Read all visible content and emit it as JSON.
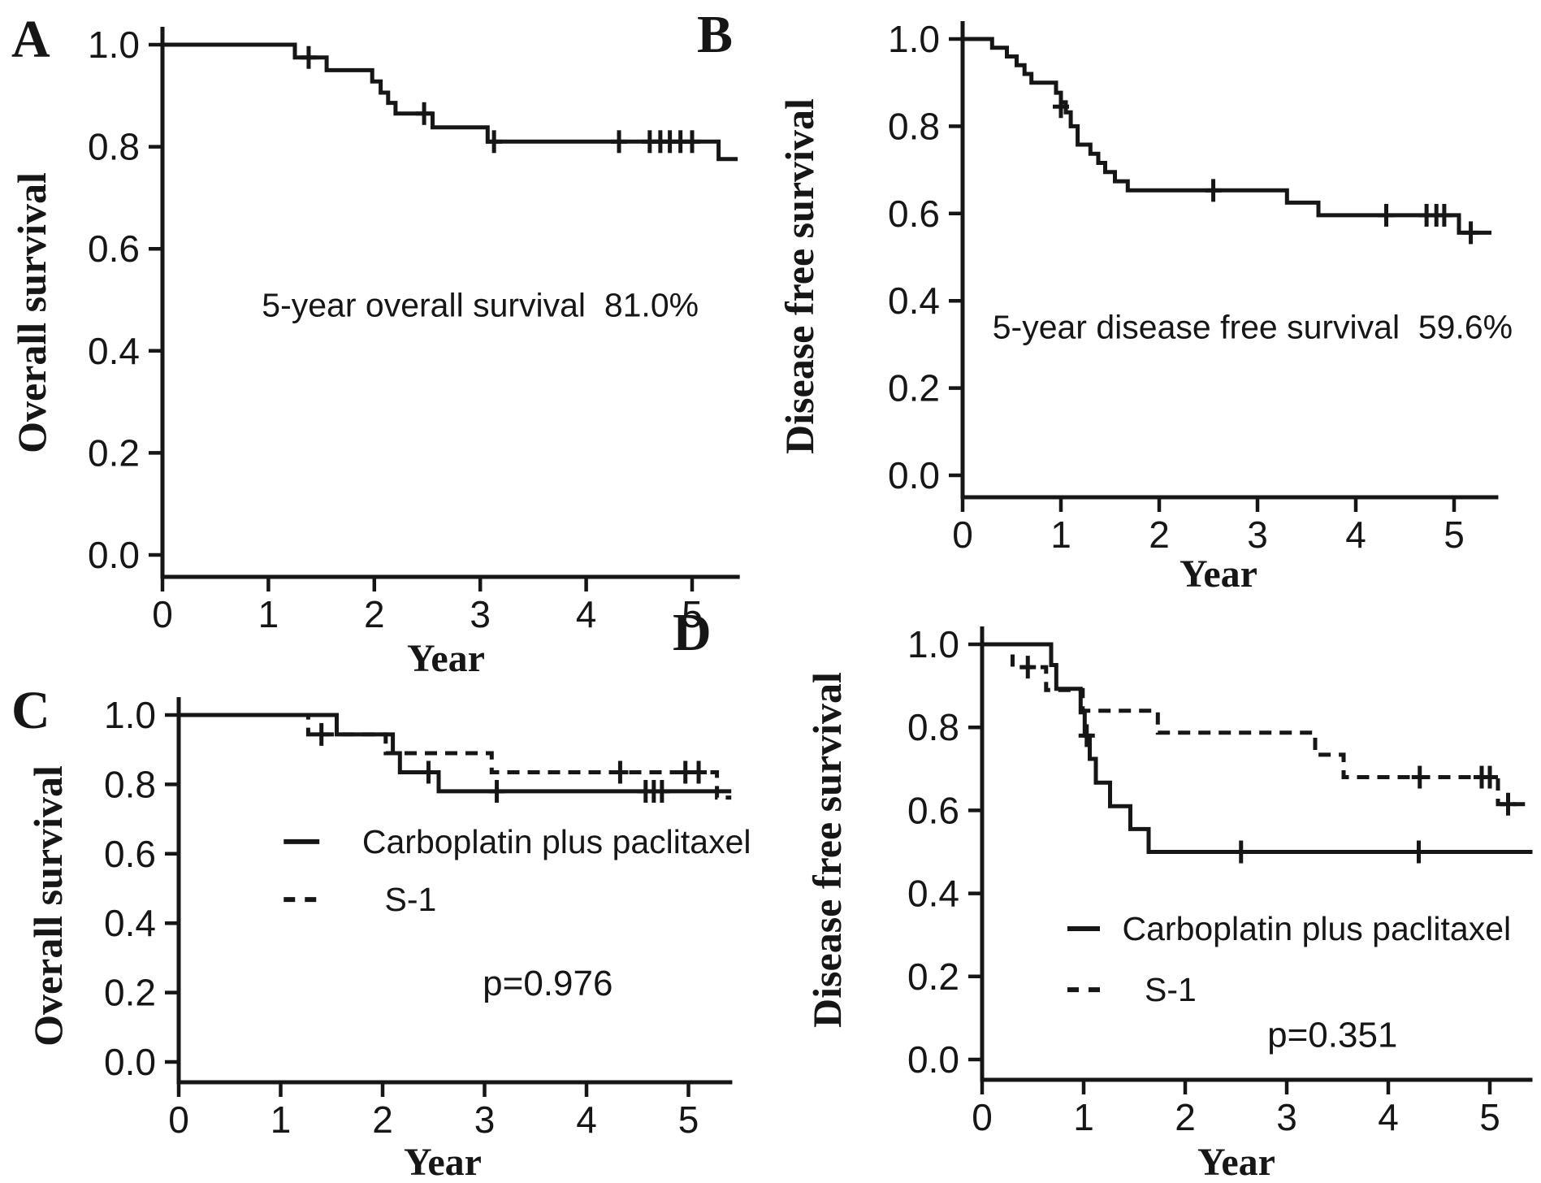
{
  "figure": {
    "background": "#ffffff",
    "ink_color": "#161616"
  },
  "chart_data": [
    {
      "id": "A",
      "type": "km_step_line",
      "panel_label": "A",
      "x_label": "Year",
      "y_label": "Overall survival",
      "x_ticks": [
        "0",
        "1",
        "2",
        "3",
        "4",
        "5"
      ],
      "y_ticks": [
        "0.0",
        "0.2",
        "0.4",
        "0.6",
        "0.8",
        "1.0"
      ],
      "x_range": [
        0,
        5.45
      ],
      "y_range": [
        0.0,
        1.0
      ],
      "grid": "off",
      "annotation": {
        "text": "5-year overall survival  81.0%",
        "x": 3.0,
        "y": 0.49
      },
      "series": [
        {
          "line_style": "solid",
          "points": [
            [
              0,
              1.0
            ],
            [
              1.25,
              1.0
            ],
            [
              1.25,
              0.975
            ],
            [
              1.55,
              0.975
            ],
            [
              1.55,
              0.95
            ],
            [
              1.98,
              0.95
            ],
            [
              1.98,
              0.928
            ],
            [
              2.06,
              0.928
            ],
            [
              2.06,
              0.906
            ],
            [
              2.13,
              0.906
            ],
            [
              2.13,
              0.886
            ],
            [
              2.2,
              0.886
            ],
            [
              2.2,
              0.865
            ],
            [
              2.55,
              0.865
            ],
            [
              2.55,
              0.838
            ],
            [
              3.07,
              0.838
            ],
            [
              3.07,
              0.81
            ],
            [
              5.25,
              0.81
            ],
            [
              5.25,
              0.776
            ],
            [
              5.43,
              0.776
            ]
          ],
          "censors": [
            [
              1.38,
              0.975
            ],
            [
              2.47,
              0.865
            ],
            [
              3.13,
              0.81
            ],
            [
              4.31,
              0.81
            ],
            [
              4.6,
              0.81
            ],
            [
              4.7,
              0.81
            ],
            [
              4.79,
              0.81
            ],
            [
              4.89,
              0.81
            ],
            [
              5.0,
              0.81
            ]
          ]
        }
      ]
    },
    {
      "id": "B",
      "type": "km_step_line",
      "panel_label": "B",
      "x_label": "Year",
      "y_label": "Disease free survival",
      "x_ticks": [
        "0",
        "1",
        "2",
        "3",
        "4",
        "5"
      ],
      "y_ticks": [
        "0.0",
        "0.2",
        "0.4",
        "0.6",
        "0.8",
        "1.0"
      ],
      "x_range": [
        0,
        5.45
      ],
      "y_range": [
        0.0,
        1.0
      ],
      "grid": "off",
      "annotation": {
        "text": "5-year disease free survival  59.6%",
        "x": 2.95,
        "y": 0.34
      },
      "series": [
        {
          "line_style": "solid",
          "points": [
            [
              0,
              1.0
            ],
            [
              0.3,
              1.0
            ],
            [
              0.3,
              0.98
            ],
            [
              0.45,
              0.98
            ],
            [
              0.45,
              0.96
            ],
            [
              0.55,
              0.96
            ],
            [
              0.55,
              0.94
            ],
            [
              0.63,
              0.94
            ],
            [
              0.63,
              0.92
            ],
            [
              0.7,
              0.92
            ],
            [
              0.7,
              0.9
            ],
            [
              0.95,
              0.9
            ],
            [
              0.95,
              0.877
            ],
            [
              1.0,
              0.877
            ],
            [
              1.0,
              0.855
            ],
            [
              1.05,
              0.855
            ],
            [
              1.05,
              0.832
            ],
            [
              1.1,
              0.832
            ],
            [
              1.1,
              0.8
            ],
            [
              1.17,
              0.8
            ],
            [
              1.17,
              0.758
            ],
            [
              1.3,
              0.758
            ],
            [
              1.3,
              0.737
            ],
            [
              1.38,
              0.737
            ],
            [
              1.38,
              0.716
            ],
            [
              1.45,
              0.716
            ],
            [
              1.45,
              0.695
            ],
            [
              1.55,
              0.695
            ],
            [
              1.55,
              0.674
            ],
            [
              1.68,
              0.674
            ],
            [
              1.68,
              0.653
            ],
            [
              3.3,
              0.653
            ],
            [
              3.3,
              0.625
            ],
            [
              3.62,
              0.625
            ],
            [
              3.62,
              0.596
            ],
            [
              5.05,
              0.596
            ],
            [
              5.05,
              0.556
            ],
            [
              5.38,
              0.556
            ]
          ],
          "censors": [
            [
              1.0,
              0.845
            ],
            [
              2.55,
              0.653
            ],
            [
              4.31,
              0.596
            ],
            [
              4.72,
              0.596
            ],
            [
              4.82,
              0.596
            ],
            [
              4.9,
              0.596
            ],
            [
              5.17,
              0.556
            ]
          ]
        }
      ]
    },
    {
      "id": "C",
      "type": "km_step_line",
      "panel_label": "C",
      "x_label": "Year",
      "y_label": "Overall survival",
      "x_ticks": [
        "0",
        "1",
        "2",
        "3",
        "4",
        "5"
      ],
      "y_ticks": [
        "0.0",
        "0.2",
        "0.4",
        "0.6",
        "0.8",
        "1.0"
      ],
      "x_range": [
        0,
        5.43
      ],
      "y_range": [
        0.0,
        1.0
      ],
      "grid": "off",
      "p_value": {
        "text": "p=0.976",
        "x": 3.62,
        "y": 0.225
      },
      "legend": {
        "swatch_x": [
          1.03,
          1.38
        ],
        "rows_y": [
          0.635,
          0.468
        ],
        "text_x": [
          1.8,
          2.02
        ]
      },
      "series": [
        {
          "legend_label": "Carboplatin plus paclitaxel",
          "line_style": "solid",
          "points": [
            [
              0,
              1.0
            ],
            [
              1.55,
              1.0
            ],
            [
              1.55,
              0.944
            ],
            [
              2.1,
              0.944
            ],
            [
              2.1,
              0.89
            ],
            [
              2.17,
              0.89
            ],
            [
              2.17,
              0.835
            ],
            [
              2.55,
              0.835
            ],
            [
              2.55,
              0.78
            ],
            [
              5.42,
              0.78
            ]
          ],
          "censors": [
            [
              2.45,
              0.835
            ],
            [
              3.12,
              0.78
            ],
            [
              4.58,
              0.78
            ],
            [
              4.66,
              0.78
            ],
            [
              4.74,
              0.78
            ]
          ]
        },
        {
          "legend_label": "S-1",
          "line_style": "dashed",
          "points": [
            [
              0,
              1.0
            ],
            [
              1.27,
              1.0
            ],
            [
              1.27,
              0.944
            ],
            [
              2.03,
              0.944
            ],
            [
              2.03,
              0.89
            ],
            [
              3.07,
              0.89
            ],
            [
              3.07,
              0.835
            ],
            [
              5.28,
              0.835
            ],
            [
              5.28,
              0.762
            ],
            [
              5.42,
              0.762
            ]
          ],
          "censors": [
            [
              1.4,
              0.944
            ],
            [
              4.33,
              0.835
            ],
            [
              4.97,
              0.835
            ],
            [
              5.1,
              0.835
            ]
          ]
        }
      ]
    },
    {
      "id": "D",
      "type": "km_step_line",
      "panel_label": "D",
      "x_label": "Year",
      "y_label": "Disease free survival",
      "x_ticks": [
        "0",
        "1",
        "2",
        "3",
        "4",
        "5"
      ],
      "y_ticks": [
        "0.0",
        "0.2",
        "0.4",
        "0.6",
        "0.8",
        "1.0"
      ],
      "x_range": [
        0,
        5.42
      ],
      "y_range": [
        0.0,
        1.0
      ],
      "grid": "off",
      "p_value": {
        "text": "p=0.351",
        "x": 3.45,
        "y": 0.058
      },
      "legend": {
        "swatch_x": [
          0.84,
          1.16
        ],
        "rows_y": [
          0.315,
          0.168
        ],
        "text_x": [
          1.38,
          1.6
        ]
      },
      "series": [
        {
          "legend_label": "Carboplatin plus paclitaxel",
          "line_style": "solid",
          "points": [
            [
              0,
              1.0
            ],
            [
              0.68,
              1.0
            ],
            [
              0.68,
              0.95
            ],
            [
              0.73,
              0.95
            ],
            [
              0.73,
              0.893
            ],
            [
              0.97,
              0.893
            ],
            [
              0.97,
              0.836
            ],
            [
              1.01,
              0.836
            ],
            [
              1.01,
              0.78
            ],
            [
              1.06,
              0.78
            ],
            [
              1.06,
              0.724
            ],
            [
              1.12,
              0.724
            ],
            [
              1.12,
              0.667
            ],
            [
              1.26,
              0.667
            ],
            [
              1.26,
              0.61
            ],
            [
              1.46,
              0.61
            ],
            [
              1.46,
              0.555
            ],
            [
              1.64,
              0.555
            ],
            [
              1.64,
              0.5
            ],
            [
              5.42,
              0.5
            ]
          ],
          "censors": [
            [
              1.03,
              0.78
            ],
            [
              2.55,
              0.5
            ],
            [
              4.3,
              0.5
            ]
          ]
        },
        {
          "legend_label": "S-1",
          "line_style": "dashed",
          "points": [
            [
              0,
              1.0
            ],
            [
              0.3,
              1.0
            ],
            [
              0.3,
              0.945
            ],
            [
              0.63,
              0.945
            ],
            [
              0.63,
              0.89
            ],
            [
              0.99,
              0.89
            ],
            [
              0.99,
              0.84
            ],
            [
              1.73,
              0.84
            ],
            [
              1.73,
              0.787
            ],
            [
              3.28,
              0.787
            ],
            [
              3.28,
              0.734
            ],
            [
              3.56,
              0.734
            ],
            [
              3.56,
              0.68
            ],
            [
              5.08,
              0.68
            ],
            [
              5.08,
              0.615
            ],
            [
              5.36,
              0.615
            ]
          ],
          "censors": [
            [
              0.45,
              0.945
            ],
            [
              4.31,
              0.68
            ],
            [
              4.92,
              0.68
            ],
            [
              5.0,
              0.68
            ],
            [
              5.18,
              0.615
            ]
          ]
        }
      ]
    }
  ]
}
